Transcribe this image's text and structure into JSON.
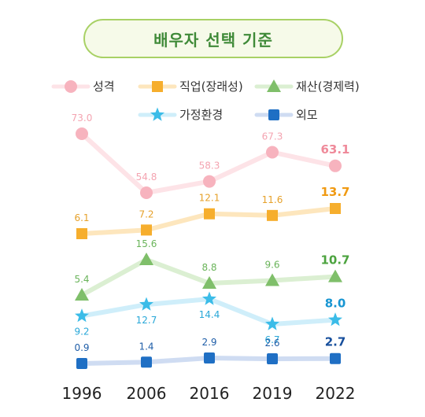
{
  "title": "배우자 선택 기준",
  "chart_data": {
    "type": "line",
    "x": [
      "1996",
      "2006",
      "2016",
      "2019",
      "2022"
    ],
    "series": [
      {
        "name": "성격",
        "values": [
          73.0,
          54.8,
          58.3,
          67.3,
          63.1
        ],
        "labels": [
          "73.0",
          "54.8",
          "58.3",
          "67.3",
          "63.1"
        ],
        "color": "#f7b3be",
        "line_color": "#fde3e7",
        "label_color": "#f4a4b1",
        "last_color": "#ef8a9a",
        "marker": "circle"
      },
      {
        "name": "직업(장래성)",
        "values": [
          6.1,
          7.2,
          12.1,
          11.6,
          13.7
        ],
        "labels": [
          "6.1",
          "7.2",
          "12.1",
          "11.6",
          "13.7"
        ],
        "color": "#f6ae2d",
        "line_color": "#fde6bd",
        "label_color": "#e6a12a",
        "last_color": "#f09a12",
        "marker": "square"
      },
      {
        "name": "재산(경제력)",
        "values": [
          5.4,
          15.6,
          8.8,
          9.6,
          10.7
        ],
        "labels": [
          "5.4",
          "15.6",
          "8.8",
          "9.6",
          "10.7"
        ],
        "color": "#7fbf6a",
        "line_color": "#dbefd2",
        "label_color": "#6ab45a",
        "last_color": "#4ca33f",
        "marker": "triangle"
      },
      {
        "name": "가정환경",
        "values": [
          9.2,
          12.7,
          14.4,
          6.7,
          8.0
        ],
        "labels": [
          "9.2",
          "12.7",
          "14.4",
          "6.7",
          "8.0"
        ],
        "color": "#3bbce8",
        "line_color": "#cfeefa",
        "label_color": "#2aa8d8",
        "last_color": "#1795d2",
        "marker": "star"
      },
      {
        "name": "외모",
        "values": [
          0.9,
          1.4,
          2.9,
          2.6,
          2.7
        ],
        "labels": [
          "0.9",
          "1.4",
          "2.9",
          "2.6",
          "2.7"
        ],
        "color": "#1f6fc4",
        "line_color": "#cfdcf2",
        "label_color": "#1f5ea8",
        "last_color": "#174f9c",
        "marker": "square-rounded"
      }
    ],
    "legend_position": "top",
    "grid": false
  }
}
